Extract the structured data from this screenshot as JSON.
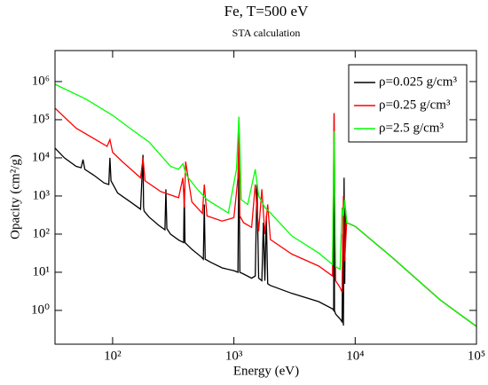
{
  "chart_data": {
    "type": "line",
    "title": "Fe, T=500 eV",
    "subtitle": "STA calculation",
    "x_label": "Energy (eV)",
    "y_label": "Opacity (cm²/g)",
    "log_x": true,
    "log_y": true,
    "xlim": [
      33.5,
      100000
    ],
    "ylim": [
      0.13,
      6500000
    ],
    "xticks": [
      {
        "value": 100,
        "label": "10²"
      },
      {
        "value": 1000,
        "label": "10³"
      },
      {
        "value": 10000,
        "label": "10⁴"
      },
      {
        "value": 100000,
        "label": "10⁵"
      }
    ],
    "yticks": [
      {
        "value": 1,
        "label": "10⁰"
      },
      {
        "value": 10,
        "label": "10¹"
      },
      {
        "value": 100,
        "label": "10²"
      },
      {
        "value": 1000,
        "label": "10³"
      },
      {
        "value": 10000,
        "label": "10⁴"
      },
      {
        "value": 100000,
        "label": "10⁵"
      },
      {
        "value": 1000000,
        "label": "10⁶"
      }
    ],
    "legend": "upper right",
    "series": [
      {
        "name": "ρ=0.025 g/cm³",
        "color": "#000000",
        "x": [
          33.5,
          40,
          50,
          55,
          57,
          59,
          70,
          85,
          93,
          95,
          97,
          110,
          140,
          170,
          178,
          180,
          182,
          200,
          240,
          270,
          275,
          280,
          300,
          350,
          385,
          390,
          395,
          450,
          540,
          560,
          570,
          580,
          650,
          800,
          1000,
          1080,
          1100,
          1120,
          1200,
          1400,
          1500,
          1550,
          1600,
          1700,
          1750,
          1800,
          1850,
          1900,
          2000,
          3000,
          5000,
          6500,
          6650,
          6700,
          6750,
          6900,
          7500,
          7800,
          7900,
          8000,
          8100,
          8200,
          8300,
          8500,
          10000,
          20000,
          50000,
          100000
        ],
        "values": [
          18000,
          10000,
          6000,
          5500,
          9000,
          5000,
          3500,
          2200,
          2000,
          10000,
          2500,
          1200,
          700,
          450,
          12000,
          500,
          400,
          280,
          170,
          130,
          1500,
          140,
          100,
          70,
          60,
          1500,
          60,
          40,
          25,
          22,
          600,
          22,
          18,
          13,
          11,
          10,
          20000,
          10,
          9,
          7,
          8,
          2000,
          7,
          6,
          200,
          6,
          300,
          5,
          4.5,
          2.8,
          1.7,
          1.1,
          1.0,
          140000,
          1.0,
          0.8,
          0.6,
          0.5,
          100,
          0.4,
          3000,
          5,
          500,
          200,
          160,
          25,
          1.9,
          0.38
        ]
      },
      {
        "name": "ρ=0.25 g/cm³",
        "color": "#ff0000",
        "x": [
          33.5,
          50,
          90,
          95,
          100,
          120,
          170,
          178,
          185,
          250,
          350,
          380,
          390,
          400,
          450,
          550,
          570,
          600,
          800,
          1000,
          1080,
          1100,
          1120,
          1200,
          1400,
          1500,
          1600,
          1700,
          1800,
          1900,
          2000,
          3000,
          5000,
          6500,
          6700,
          6900,
          7500,
          7800,
          8000,
          8200,
          8500,
          10000,
          20000,
          50000,
          100000
        ],
        "values": [
          200000,
          60000,
          20000,
          30000,
          14000,
          8000,
          3000,
          10000,
          2500,
          1300,
          900,
          3000,
          500,
          8000,
          700,
          350,
          2000,
          300,
          220,
          270,
          3000,
          50000,
          300,
          200,
          150,
          2000,
          120,
          1500,
          100,
          600,
          72,
          30,
          14.6,
          8,
          150000,
          6,
          4,
          3,
          1000,
          20,
          200,
          160,
          25,
          1.9,
          0.38
        ]
      },
      {
        "name": "ρ=2.5 g/cm³",
        "color": "#00ff00",
        "x": [
          33.5,
          60,
          100,
          150,
          200,
          300,
          350,
          380,
          400,
          420,
          500,
          600,
          800,
          900,
          1050,
          1100,
          1150,
          1300,
          1500,
          1600,
          1800,
          2000,
          3000,
          5000,
          6500,
          6700,
          6900,
          7500,
          7800,
          8000,
          8200,
          8500,
          10000,
          20000,
          50000,
          100000
        ],
        "values": [
          850000,
          350000,
          130000,
          50000,
          26000,
          6000,
          5000,
          7000,
          4000,
          3000,
          1500,
          800,
          450,
          360,
          5000,
          120000,
          800,
          600,
          5000,
          1000,
          500,
          360,
          90,
          32,
          16,
          50000,
          14,
          12,
          500,
          300,
          800,
          200,
          160,
          25,
          1.9,
          0.38
        ]
      }
    ]
  }
}
